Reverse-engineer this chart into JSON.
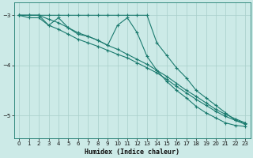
{
  "xlabel": "Humidex (Indice chaleur)",
  "bg_color": "#cceae7",
  "line_color": "#1a7a6e",
  "grid_color": "#a8ceca",
  "xlim": [
    -0.5,
    23.5
  ],
  "ylim": [
    -5.45,
    -2.75
  ],
  "yticks": [
    -5,
    -4,
    -3
  ],
  "xticks": [
    0,
    1,
    2,
    3,
    4,
    5,
    6,
    7,
    8,
    9,
    10,
    11,
    12,
    13,
    14,
    15,
    16,
    17,
    18,
    19,
    20,
    21,
    22,
    23
  ],
  "s1x": [
    0,
    1,
    2,
    3,
    4,
    5,
    6,
    7,
    8,
    9,
    10,
    11,
    12,
    13,
    14,
    15,
    16,
    17,
    18,
    19,
    20,
    21,
    22,
    23
  ],
  "s1y": [
    -3.0,
    -3.0,
    -3.0,
    -3.0,
    -3.0,
    -3.0,
    -3.0,
    -3.0,
    -3.0,
    -3.0,
    -3.0,
    -3.0,
    -3.0,
    -3.0,
    -3.55,
    -3.8,
    -4.05,
    -4.25,
    -4.5,
    -4.65,
    -4.8,
    -4.95,
    -5.1,
    -5.15
  ],
  "s2x": [
    0,
    1,
    2,
    3,
    4,
    5,
    6,
    7,
    8,
    9,
    10,
    11,
    12,
    13,
    14,
    15,
    16,
    17,
    18,
    19,
    20,
    21,
    22,
    23
  ],
  "s2y": [
    -3.0,
    -3.0,
    -3.0,
    -3.2,
    -3.05,
    -3.25,
    -3.38,
    -3.42,
    -3.5,
    -3.6,
    -3.2,
    -3.05,
    -3.35,
    -3.82,
    -4.1,
    -4.32,
    -4.5,
    -4.65,
    -4.82,
    -4.95,
    -5.05,
    -5.15,
    -5.2,
    -5.22
  ],
  "s3x": [
    0,
    1,
    2,
    3,
    4,
    5,
    6,
    7,
    8,
    9,
    10,
    11,
    12,
    13,
    14,
    15,
    16,
    17,
    18,
    19,
    20,
    21,
    22,
    23
  ],
  "s3y": [
    -3.0,
    -3.05,
    -3.05,
    -3.2,
    -3.28,
    -3.38,
    -3.48,
    -3.55,
    -3.62,
    -3.7,
    -3.78,
    -3.85,
    -3.95,
    -4.05,
    -4.15,
    -4.28,
    -4.42,
    -4.55,
    -4.68,
    -4.8,
    -4.92,
    -5.02,
    -5.1,
    -5.18
  ],
  "s4x": [
    0,
    1,
    2,
    3,
    4,
    5,
    6,
    7,
    8,
    9,
    10,
    11,
    12,
    13,
    14,
    15,
    16,
    17,
    18,
    19,
    20,
    21,
    22,
    23
  ],
  "s4y": [
    -3.0,
    -3.0,
    -3.0,
    -3.08,
    -3.15,
    -3.25,
    -3.35,
    -3.42,
    -3.5,
    -3.6,
    -3.68,
    -3.78,
    -3.88,
    -3.98,
    -4.1,
    -4.22,
    -4.36,
    -4.5,
    -4.62,
    -4.75,
    -4.88,
    -4.98,
    -5.07,
    -5.15
  ]
}
